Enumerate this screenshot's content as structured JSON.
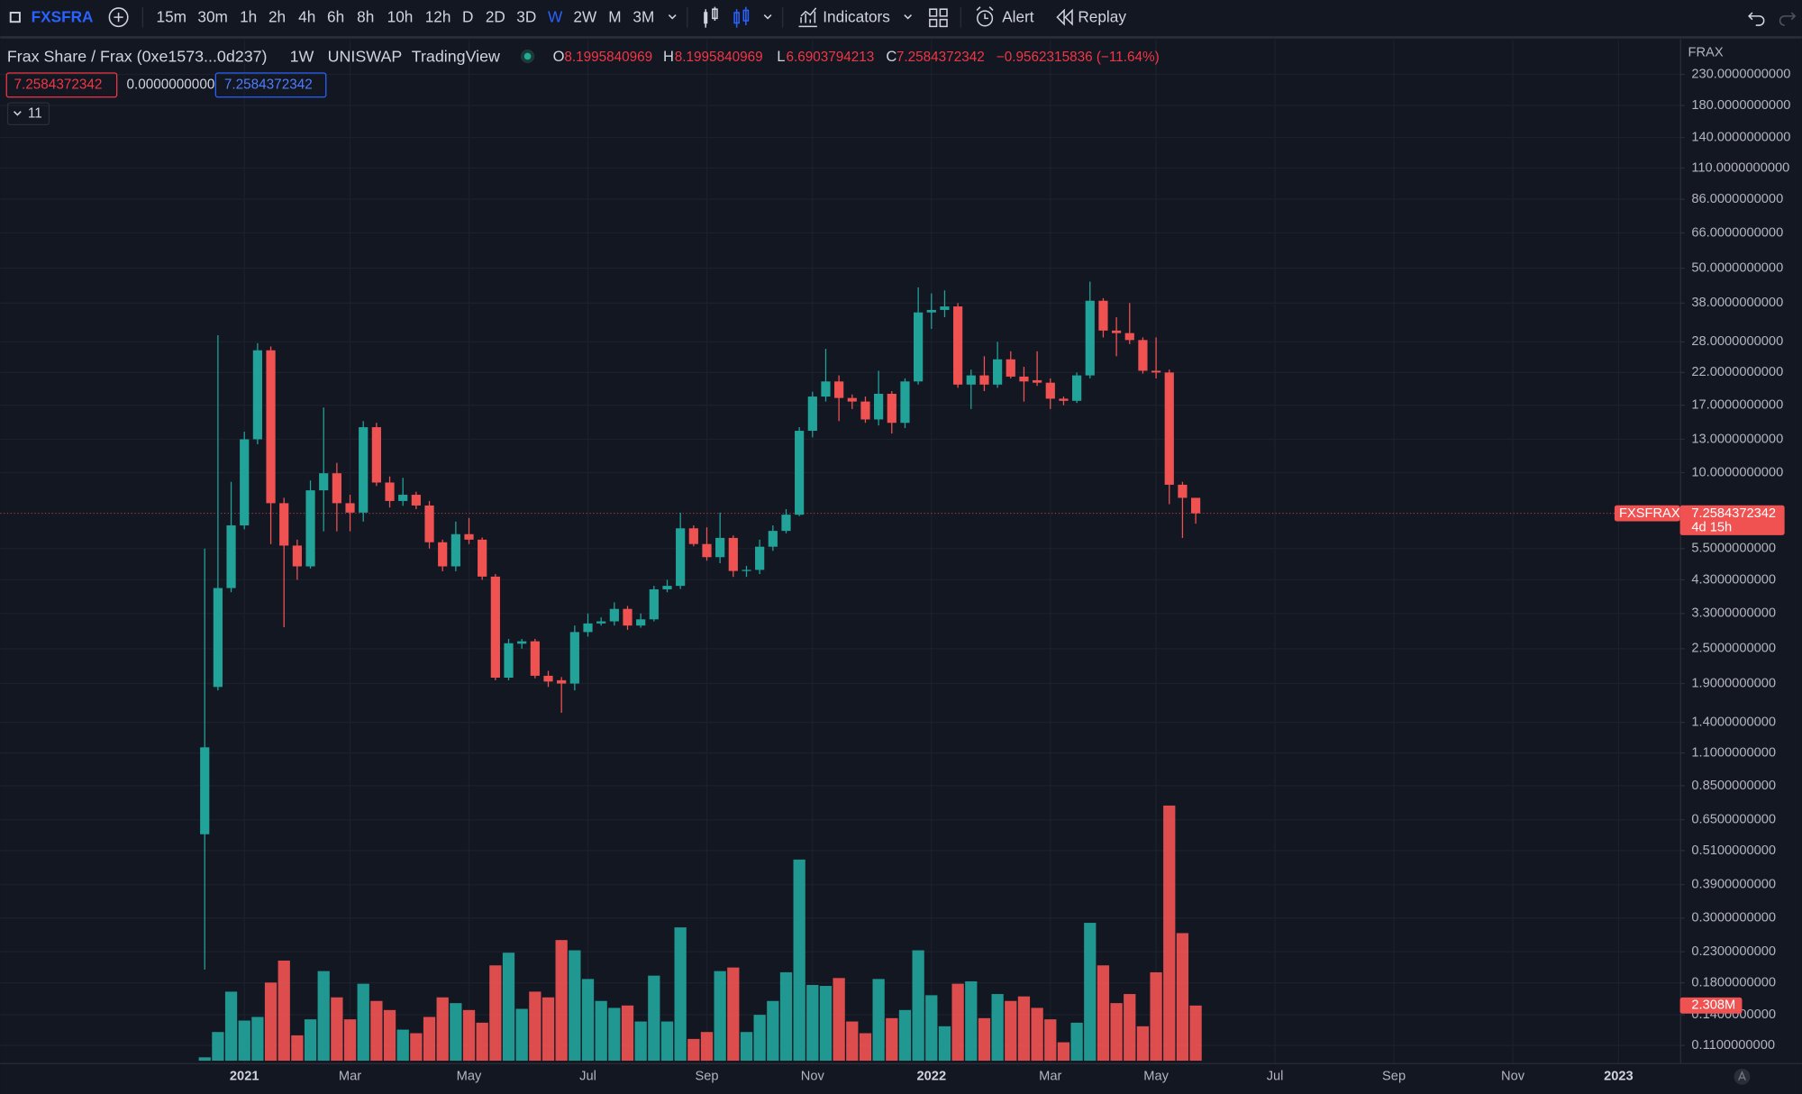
{
  "toolbar": {
    "symbol": "FXSFRA",
    "intervals": [
      "15m",
      "30m",
      "1h",
      "2h",
      "4h",
      "6h",
      "8h",
      "10h",
      "12h",
      "D",
      "2D",
      "3D",
      "W",
      "2W",
      "M",
      "3M"
    ],
    "active_interval": "W",
    "indicators": "Indicators",
    "alert": "Alert",
    "replay": "Replay"
  },
  "legend": {
    "title": "Frax Share / Frax (0xe1573...0d237)",
    "interval": "1W",
    "exchange": "UNISWAP",
    "source": "TradingView",
    "o_label": "O",
    "h_label": "H",
    "l_label": "L",
    "c_label": "C",
    "change": "−0.9562315836 (−11.64%)",
    "zero_input": "0.0000000000",
    "collapsed_count": "11"
  },
  "chart_data": {
    "type": "candlestick",
    "currency": "FRAX",
    "log_scale": true,
    "grid": true,
    "up_color": "#22a39a",
    "down_color": "#f05252",
    "symbol_tag": "FXSFRAX",
    "countdown": "4d 15h",
    "ylim": [
      0.0958,
      301
    ],
    "yticks": [
      {
        "value": 230,
        "label": "230.0000000000"
      },
      {
        "value": 180,
        "label": "180.0000000000"
      },
      {
        "value": 140,
        "label": "140.0000000000"
      },
      {
        "value": 110,
        "label": "110.0000000000"
      },
      {
        "value": 86,
        "label": "86.0000000000"
      },
      {
        "value": 66,
        "label": "66.0000000000"
      },
      {
        "value": 50,
        "label": "50.0000000000"
      },
      {
        "value": 38,
        "label": "38.0000000000"
      },
      {
        "value": 28,
        "label": "28.0000000000"
      },
      {
        "value": 22,
        "label": "22.0000000000"
      },
      {
        "value": 17,
        "label": "17.0000000000"
      },
      {
        "value": 13,
        "label": "13.0000000000"
      },
      {
        "value": 10,
        "label": "10.0000000000"
      },
      {
        "value": 5.5,
        "label": "5.5000000000"
      },
      {
        "value": 4.3,
        "label": "4.3000000000"
      },
      {
        "value": 3.3,
        "label": "3.3000000000"
      },
      {
        "value": 2.5,
        "label": "2.5000000000"
      },
      {
        "value": 1.9,
        "label": "1.9000000000"
      },
      {
        "value": 1.4,
        "label": "1.4000000000"
      },
      {
        "value": 1.1,
        "label": "1.1000000000"
      },
      {
        "value": 0.85,
        "label": "0.8500000000"
      },
      {
        "value": 0.65,
        "label": "0.6500000000"
      },
      {
        "value": 0.51,
        "label": "0.5100000000"
      },
      {
        "value": 0.39,
        "label": "0.3900000000"
      },
      {
        "value": 0.3,
        "label": "0.3000000000"
      },
      {
        "value": 0.23,
        "label": "0.2300000000"
      },
      {
        "value": 0.18,
        "label": "0.1800000000"
      },
      {
        "value": 0.14,
        "label": "0.1400000000"
      },
      {
        "value": 0.11,
        "label": "0.1100000000"
      }
    ],
    "categories": [
      null,
      null,
      null,
      "2021",
      null,
      null,
      null,
      null,
      null,
      null,
      null,
      "Mar",
      null,
      null,
      null,
      null,
      null,
      null,
      null,
      null,
      "May",
      null,
      null,
      null,
      null,
      null,
      null,
      null,
      null,
      "Jul",
      null,
      null,
      null,
      null,
      null,
      null,
      null,
      null,
      "Sep",
      null,
      null,
      null,
      null,
      null,
      null,
      null,
      "Nov",
      null,
      null,
      null,
      null,
      null,
      null,
      null,
      null,
      "2022",
      null,
      null,
      null,
      null,
      null,
      null,
      null,
      null,
      "Mar",
      null,
      null,
      null,
      null,
      null,
      null,
      null,
      "May",
      null,
      null,
      null,
      null,
      null,
      null,
      null,
      null,
      "Jul",
      null,
      null,
      null,
      null,
      null,
      null,
      null,
      null,
      "Sep",
      null,
      null,
      null,
      null,
      null,
      null,
      null,
      null,
      "Nov",
      null,
      null,
      null,
      null,
      null,
      null,
      null,
      "2023",
      null,
      null,
      null,
      null
    ],
    "open": [
      0.58,
      1.85,
      4.03,
      6.6,
      13,
      26.2,
      7.86,
      5.63,
      4.78,
      8.7,
      9.95,
      7.86,
      7.3,
      14.3,
      9.25,
      8.0,
      8.4,
      7.72,
      5.78,
      4.78,
      6.16,
      5.9,
      4.41,
      1.99,
      2.6,
      2.65,
      2.02,
      1.95,
      1.9,
      2.85,
      3.05,
      3.1,
      3.42,
      3.0,
      3.15,
      3.99,
      4.1,
      6.45,
      5.7,
      5.14,
      5.98,
      4.61,
      4.65,
      5.58,
      6.32,
      7.18,
      13.9,
      18.2,
      20.5,
      18,
      17.5,
      15.2,
      18.6,
      14.8,
      20.5,
      35.3,
      36,
      37,
      20,
      21.5,
      20,
      24.4,
      21.3,
      20.7,
      20.3,
      17.9,
      17.6,
      21.5,
      38.7,
      30.6,
      30,
      28.4,
      22.3,
      22,
      9.09,
      8.1995840969,
      null,
      null,
      null,
      null,
      null,
      null,
      null,
      null,
      null,
      null,
      null,
      null,
      null,
      null,
      null,
      null,
      null,
      null,
      null,
      null,
      null,
      null,
      null,
      null,
      null,
      null,
      null,
      null,
      null,
      null,
      null,
      null,
      null,
      null,
      null,
      null
    ],
    "high": [
      5.5,
      29.5,
      9.3,
      13.8,
      27.7,
      27,
      8.2,
      5.9,
      9.4,
      16.7,
      10.8,
      8.4,
      15,
      14.8,
      9.7,
      9.6,
      8.6,
      8,
      5.9,
      6.8,
      7,
      6.0,
      4.5,
      2.7,
      2.7,
      2.7,
      2.1,
      2.0,
      3.0,
      3.3,
      3.2,
      3.6,
      3.5,
      3.3,
      4.1,
      4.3,
      7.3,
      6.6,
      6.5,
      7.3,
      6.1,
      4.8,
      5.9,
      6.6,
      7.5,
      14.3,
      18.9,
      26.5,
      21.5,
      18.5,
      18.2,
      22.3,
      19,
      21,
      43,
      41,
      42,
      38,
      22.5,
      25,
      28,
      26,
      23,
      26,
      21,
      18.2,
      22,
      45,
      39.5,
      34,
      38,
      29,
      29,
      22.5,
      9.3,
      8.1995840969,
      null,
      null,
      null,
      null,
      null,
      null,
      null,
      null,
      null,
      null,
      null,
      null,
      null,
      null,
      null,
      null,
      null,
      null,
      null,
      null,
      null,
      null,
      null,
      null,
      null,
      null,
      null,
      null,
      null,
      null,
      null,
      null,
      null,
      null,
      null,
      null
    ],
    "low": [
      0.2,
      1.8,
      3.9,
      6.4,
      12.5,
      5.7,
      2.96,
      4.3,
      4.7,
      6.3,
      6.3,
      6.3,
      6.8,
      9,
      7.6,
      7.7,
      7.5,
      5.5,
      4.6,
      4.6,
      5.7,
      4.3,
      1.95,
      1.95,
      2.5,
      1.98,
      1.85,
      1.51,
      1.8,
      2.75,
      3.0,
      3.0,
      2.9,
      2.95,
      3.1,
      3.9,
      4.0,
      5.6,
      5.0,
      4.9,
      4.4,
      4.4,
      4.5,
      5.4,
      6.2,
      7.1,
      13.2,
      17.5,
      15,
      16.5,
      14.8,
      14.5,
      13.6,
      14.2,
      20,
      31,
      34,
      19.5,
      16.5,
      19,
      19.5,
      21,
      17.5,
      19.8,
      16.5,
      17,
      17.3,
      21,
      29,
      25,
      27.5,
      21.8,
      21,
      7.8,
      5.98,
      6.6903794213,
      null,
      null,
      null,
      null,
      null,
      null,
      null,
      null,
      null,
      null,
      null,
      null,
      null,
      null,
      null,
      null,
      null,
      null,
      null,
      null,
      null,
      null,
      null,
      null,
      null,
      null,
      null,
      null,
      null,
      null,
      null,
      null,
      null,
      null,
      null,
      null
    ],
    "close": [
      1.15,
      4.03,
      6.6,
      13,
      26.2,
      7.86,
      5.63,
      4.78,
      8.7,
      9.95,
      7.86,
      7.3,
      14.3,
      9.25,
      8.0,
      8.4,
      7.72,
      5.78,
      4.78,
      6.16,
      5.9,
      4.41,
      1.99,
      2.61,
      2.65,
      2.02,
      1.93,
      1.9,
      2.85,
      3.05,
      3.1,
      3.42,
      3.0,
      3.15,
      3.99,
      4.1,
      6.45,
      5.7,
      5.14,
      5.98,
      4.61,
      4.65,
      5.58,
      6.32,
      7.18,
      13.9,
      18.2,
      20.5,
      18,
      17.5,
      15.2,
      18.6,
      14.8,
      20.5,
      35.3,
      36,
      37,
      20,
      21.5,
      20,
      24.4,
      21.3,
      20.5,
      20.3,
      17.9,
      17.6,
      21.5,
      38.7,
      30.6,
      30,
      28.4,
      22.3,
      22,
      9.09,
      8.2,
      7.2584372342,
      null,
      null,
      null,
      null,
      null,
      null,
      null,
      null,
      null,
      null,
      null,
      null,
      null,
      null,
      null,
      null,
      null,
      null,
      null,
      null,
      null,
      null,
      null,
      null,
      null,
      null,
      null,
      null,
      null,
      null,
      null,
      null,
      null,
      null,
      null,
      null
    ],
    "volume": [
      140000,
      1200000,
      2890000,
      1680000,
      1830000,
      3270000,
      4190000,
      1060000,
      1730000,
      3750000,
      2650000,
      1730000,
      3220000,
      2500000,
      2120000,
      1300000,
      1150000,
      1830000,
      2650000,
      2410000,
      2120000,
      1590000,
      3990000,
      4520000,
      2170000,
      2890000,
      2650000,
      5050000,
      4620000,
      3420000,
      2500000,
      2210000,
      2310000,
      1640000,
      3560000,
      1640000,
      5580000,
      910000,
      1200000,
      3750000,
      3900000,
      1200000,
      1920000,
      2500000,
      3700000,
      8420000,
      3170000,
      3130000,
      3460000,
      1640000,
      1150000,
      3420000,
      1780000,
      2120000,
      4620000,
      2740000,
      1440000,
      3220000,
      3320000,
      1780000,
      2790000,
      2500000,
      2690000,
      2210000,
      1730000,
      770000,
      1590000,
      5770000,
      3990000,
      2410000,
      2790000,
      1440000,
      3700000,
      10680000,
      5340000,
      2308000,
      null,
      null,
      null,
      null,
      null,
      null,
      null,
      null,
      null,
      null,
      null,
      null,
      null,
      null,
      null,
      null,
      null,
      null,
      null,
      null,
      null,
      null,
      null,
      null,
      null,
      null,
      null,
      null,
      null,
      null,
      null,
      null,
      null,
      null,
      null,
      null
    ],
    "volume_labels": [
      null,
      null,
      null,
      null,
      null,
      null,
      null,
      null,
      null,
      null,
      null,
      null,
      null,
      null,
      null,
      null,
      null,
      null,
      null,
      null,
      null,
      null,
      null,
      null,
      null,
      null,
      null,
      null,
      null,
      null,
      null,
      null,
      null,
      null,
      null,
      null,
      null,
      null,
      null,
      null,
      null,
      null,
      null,
      null,
      null,
      null,
      null,
      null,
      null,
      null,
      null,
      null,
      null,
      null,
      null,
      null,
      null,
      null,
      null,
      null,
      null,
      null,
      null,
      null,
      null,
      null,
      null,
      null,
      null,
      null,
      null,
      null,
      null,
      null,
      null,
      "2.308M",
      null,
      null,
      null,
      null,
      null,
      null,
      null,
      null,
      null,
      null,
      null,
      null,
      null,
      null,
      null,
      null,
      null,
      null,
      null,
      null,
      null,
      null,
      null,
      null,
      null,
      null,
      null,
      null,
      null,
      null,
      null,
      null,
      null,
      null,
      null,
      null
    ]
  }
}
